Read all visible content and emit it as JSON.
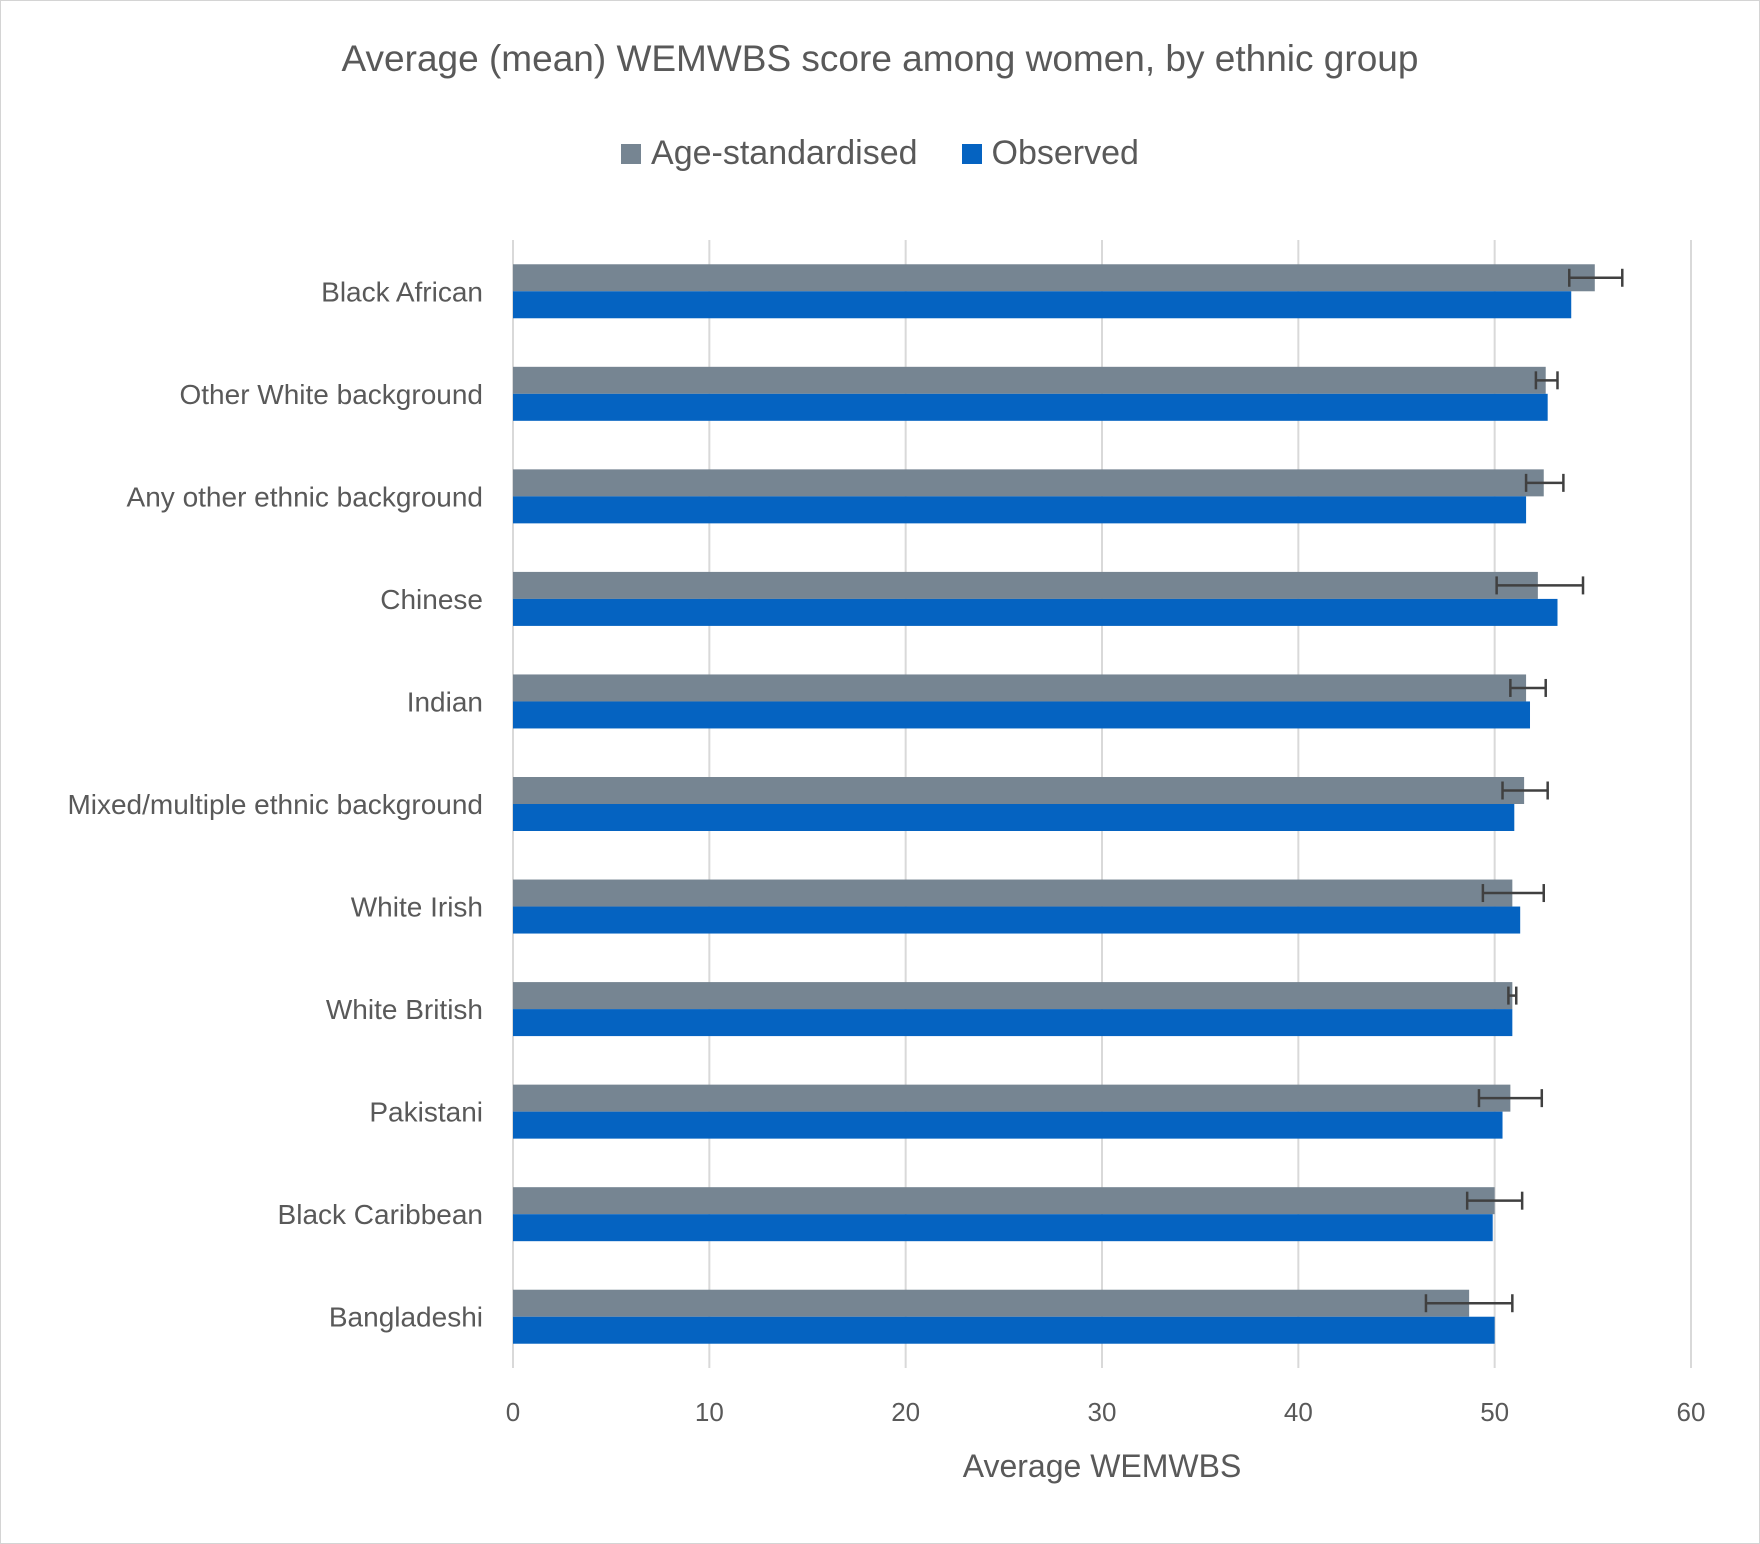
{
  "chart_data": {
    "type": "bar",
    "orientation": "horizontal",
    "title": "Average (mean) WEMWBS score among women, by ethnic group",
    "xlabel": "Average WEMWBS",
    "ylabel": "",
    "xlim": [
      0,
      60
    ],
    "xticks": [
      0,
      10,
      20,
      30,
      40,
      50,
      60
    ],
    "grid": true,
    "legend_position": "top",
    "categories": [
      "Black African",
      "Other White background",
      "Any other ethnic background",
      "Chinese",
      "Indian",
      "Mixed/multiple ethnic background",
      "White Irish",
      "White British",
      "Pakistani",
      "Black Caribbean",
      "Bangladeshi"
    ],
    "series": [
      {
        "name": "Age-standardised",
        "color": "#768592",
        "values": [
          55.1,
          52.6,
          52.5,
          52.2,
          51.6,
          51.5,
          50.9,
          50.9,
          50.8,
          50.0,
          48.7
        ],
        "error_low": [
          53.8,
          52.1,
          51.6,
          50.1,
          50.8,
          50.4,
          49.4,
          50.7,
          49.2,
          48.6,
          46.5
        ],
        "error_high": [
          56.5,
          53.2,
          53.5,
          54.5,
          52.6,
          52.7,
          52.5,
          51.1,
          52.4,
          51.4,
          50.9
        ]
      },
      {
        "name": "Observed",
        "color": "#0563C1",
        "values": [
          53.9,
          52.7,
          51.6,
          53.2,
          51.8,
          51.0,
          51.3,
          50.9,
          50.4,
          49.9,
          50.0
        ]
      }
    ]
  },
  "colors": {
    "gridline": "#d9d9d9",
    "axis_text": "#595959",
    "error_bar": "#404040",
    "border": "#d4d4d4"
  }
}
